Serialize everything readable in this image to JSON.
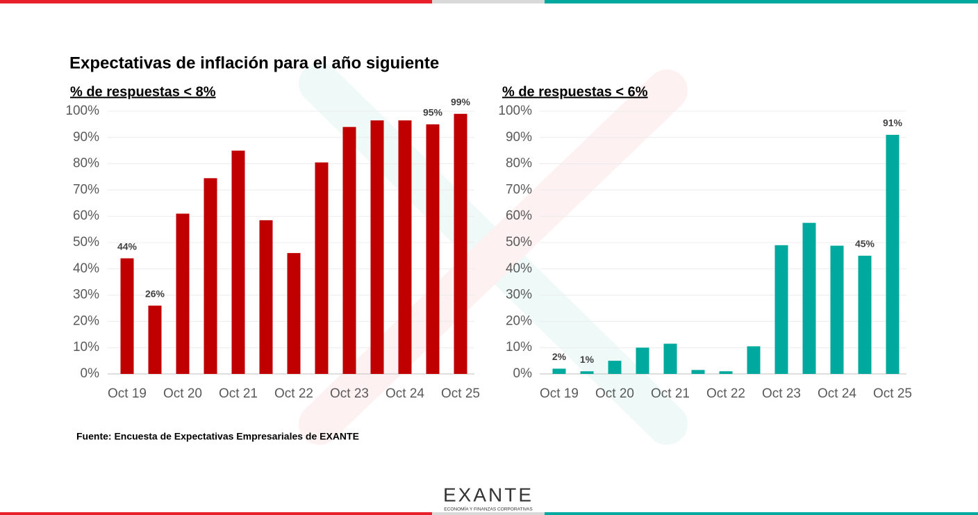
{
  "title": "Expectativas de inflación para el año siguiente",
  "source": "Fuente: Encuesta de Expectativas Empresariales de EXANTE",
  "logo": {
    "name": "EXANTE",
    "tagline": "ECONOMÍA Y FINANZAS CORPORATIVAS"
  },
  "chart_data": [
    {
      "type": "bar",
      "subtitle": "% de respuestas < 8%",
      "categories": [
        "Oct 19",
        null,
        "Oct 20",
        null,
        "Oct 21",
        null,
        "Oct 22",
        null,
        "Oct 23",
        null,
        "Oct 24",
        null,
        "Oct 25"
      ],
      "values": [
        44,
        26,
        61,
        74.5,
        85,
        58.5,
        46,
        80.5,
        94,
        96.5,
        96.5,
        95,
        99
      ],
      "value_labels": [
        "44%",
        "26%",
        null,
        null,
        null,
        null,
        null,
        null,
        null,
        null,
        null,
        "95%",
        "99%"
      ],
      "color": "#c00000",
      "ylim": [
        0,
        100
      ],
      "yticks": [
        {
          "value": 0,
          "label": "0%"
        },
        {
          "value": 10,
          "label": "10%"
        },
        {
          "value": 20,
          "label": "20%"
        },
        {
          "value": 30,
          "label": "30%"
        },
        {
          "value": 40,
          "label": "40%"
        },
        {
          "value": 50,
          "label": "50%"
        },
        {
          "value": 60,
          "label": "60%"
        },
        {
          "value": 70,
          "label": "70%"
        },
        {
          "value": 80,
          "label": "80%"
        },
        {
          "value": 90,
          "label": "90%"
        },
        {
          "value": 100,
          "label": "100%"
        }
      ],
      "grid": true
    },
    {
      "type": "bar",
      "subtitle": "% de respuestas < 6%",
      "categories": [
        "Oct 19",
        null,
        "Oct 20",
        null,
        "Oct 21",
        null,
        "Oct 22",
        null,
        "Oct 23",
        null,
        "Oct 24",
        null,
        "Oct 25"
      ],
      "values": [
        2,
        1,
        5,
        10,
        11.5,
        1.5,
        1,
        10.5,
        49,
        57.5,
        48.8,
        45,
        91
      ],
      "value_labels": [
        "2%",
        "1%",
        null,
        null,
        null,
        null,
        null,
        null,
        null,
        null,
        null,
        "45%",
        "91%"
      ],
      "color": "#00a99d",
      "ylim": [
        0,
        100
      ],
      "yticks": [
        {
          "value": 0,
          "label": "0%"
        },
        {
          "value": 10,
          "label": "10%"
        },
        {
          "value": 20,
          "label": "20%"
        },
        {
          "value": 30,
          "label": "30%"
        },
        {
          "value": 40,
          "label": "40%"
        },
        {
          "value": 50,
          "label": "50%"
        },
        {
          "value": 60,
          "label": "60%"
        },
        {
          "value": 70,
          "label": "70%"
        },
        {
          "value": 80,
          "label": "80%"
        },
        {
          "value": 90,
          "label": "90%"
        },
        {
          "value": 100,
          "label": "100%"
        }
      ],
      "grid": true
    }
  ]
}
